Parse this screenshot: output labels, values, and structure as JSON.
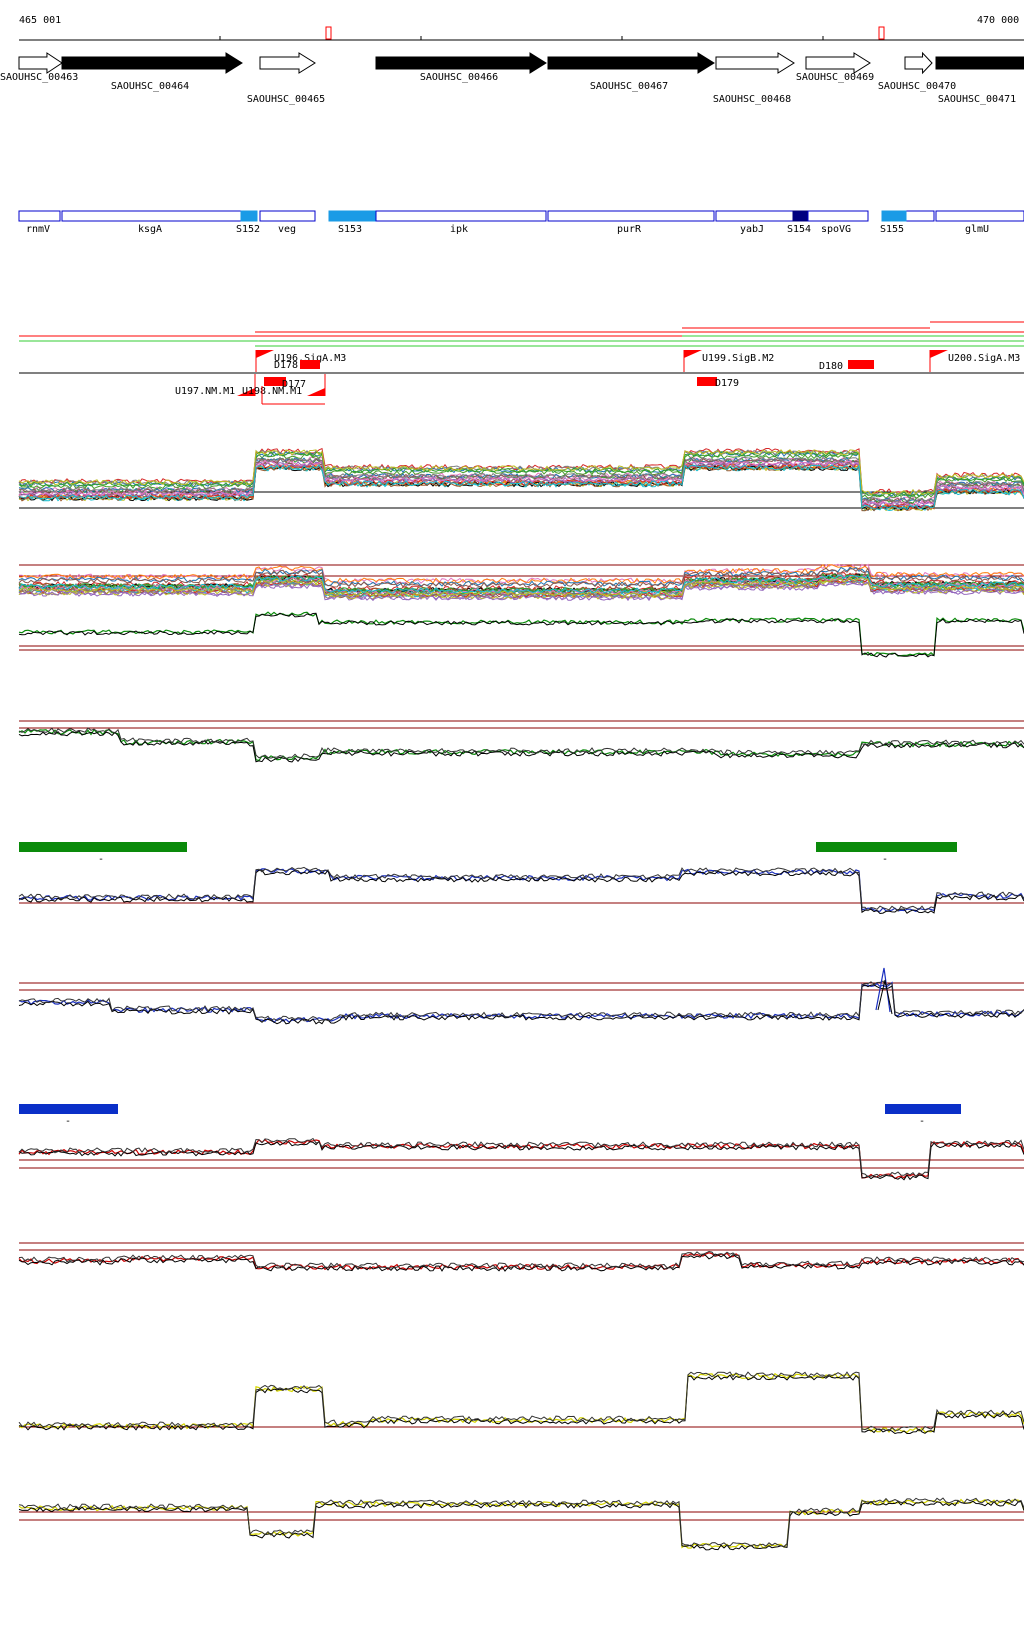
{
  "ruler": {
    "start": "465 001",
    "end": "470 000"
  },
  "genes": [
    {
      "id": "SAOUHSC_00463",
      "fill": "white",
      "dir": "right"
    },
    {
      "id": "SAOUHSC_00464",
      "fill": "black",
      "dir": "right"
    },
    {
      "id": "SAOUHSC_00465",
      "fill": "white",
      "dir": "right"
    },
    {
      "id": "SAOUHSC_00466",
      "fill": "black",
      "dir": "right"
    },
    {
      "id": "SAOUHSC_00467",
      "fill": "black",
      "dir": "right"
    },
    {
      "id": "SAOUHSC_00468",
      "fill": "white",
      "dir": "right"
    },
    {
      "id": "SAOUHSC_00469",
      "fill": "white",
      "dir": "right"
    },
    {
      "id": "SAOUHSC_00470",
      "fill": "white",
      "dir": "right"
    },
    {
      "id": "SAOUHSC_00471",
      "fill": "black",
      "dir": "right"
    }
  ],
  "annotations": [
    {
      "label": "rnmV",
      "kind": "gene"
    },
    {
      "label": "ksgA",
      "kind": "gene"
    },
    {
      "label": "S152",
      "kind": "srna"
    },
    {
      "label": "veg",
      "kind": "gene"
    },
    {
      "label": "S153",
      "kind": "srna"
    },
    {
      "label": "ipk",
      "kind": "gene"
    },
    {
      "label": "purR",
      "kind": "gene"
    },
    {
      "label": "yabJ",
      "kind": "gene"
    },
    {
      "label": "S154",
      "kind": "srna-dark"
    },
    {
      "label": "spoVG",
      "kind": "gene"
    },
    {
      "label": "S155",
      "kind": "srna"
    },
    {
      "label": "glmU",
      "kind": "gene"
    }
  ],
  "promoters": [
    {
      "label": "U196.SigA.M3"
    },
    {
      "label": "U197.NM.M1"
    },
    {
      "label": "U198.NM.M1"
    },
    {
      "label": "U199.SigB.M2"
    },
    {
      "label": "U200.SigA.M3"
    }
  ],
  "terminators": [
    {
      "label": "D178"
    },
    {
      "label": "D177"
    },
    {
      "label": "D179"
    },
    {
      "label": "D180"
    }
  ],
  "colors": {
    "gene_outline": "#000000",
    "annotation_outline": "#0000cc",
    "srna_fill": "#1a9be6",
    "srna_dark_fill": "#000080",
    "promoter_red": "#ff0000",
    "coverage_green": "#0a8a0a",
    "coverage_blue": "#1a2fbf",
    "coverage_red": "#cc0000",
    "coverage_yellow": "#d6d600",
    "threshold_line": "#8b0000",
    "bar_green": "#0a8a0a",
    "bar_blue": "#0a2fc8"
  },
  "tracks": [
    {
      "id": "multi-condition-a",
      "style": "multi"
    },
    {
      "id": "multi-condition-b",
      "style": "multi-plus-green"
    },
    {
      "id": "green-reverse",
      "style": "single",
      "color": "green"
    },
    {
      "id": "blue-forward",
      "style": "single",
      "color": "blue"
    },
    {
      "id": "blue-reverse",
      "style": "single",
      "color": "blue"
    },
    {
      "id": "red-forward",
      "style": "single",
      "color": "red"
    },
    {
      "id": "red-reverse",
      "style": "single",
      "color": "red"
    },
    {
      "id": "yellow-forward",
      "style": "single",
      "color": "yellow"
    },
    {
      "id": "yellow-reverse",
      "style": "single",
      "color": "yellow"
    }
  ],
  "bar_labels": {
    "minus": "-"
  }
}
